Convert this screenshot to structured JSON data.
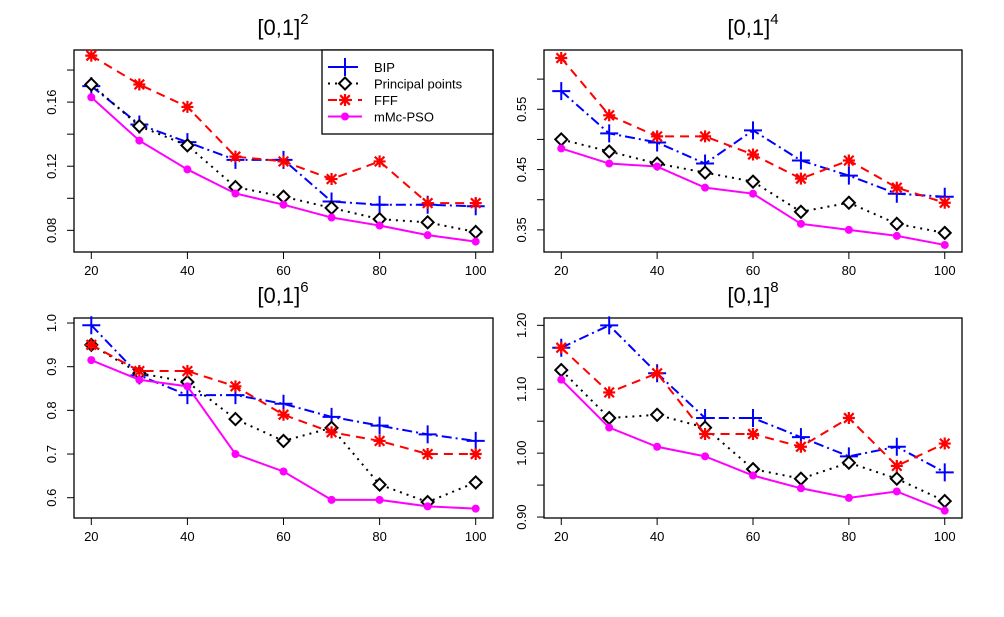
{
  "chart_data": [
    {
      "type": "line",
      "title": "[0,1]",
      "title_exponent": "2",
      "xlabel": "",
      "ylabel": "",
      "x": [
        20,
        30,
        40,
        50,
        60,
        70,
        80,
        90,
        100
      ],
      "xticks": [
        20,
        40,
        60,
        80,
        100
      ],
      "yticks": [
        0.08,
        0.1,
        0.12,
        0.14,
        0.16,
        0.18
      ],
      "ytick_labels": [
        "0.08",
        "",
        "0.12",
        "",
        "0.16",
        ""
      ],
      "ylim": [
        0.0665,
        0.1925
      ],
      "xlim": [
        16.4,
        103.6
      ],
      "legend": "top-right",
      "series": [
        {
          "name": "BIP",
          "color": "#0000ff",
          "marker": "plus",
          "linestyle": "dashdot",
          "values": [
            0.17,
            0.146,
            0.135,
            0.124,
            0.124,
            0.098,
            0.096,
            0.096,
            0.095
          ]
        },
        {
          "name": "Principal points",
          "color": "#000000",
          "marker": "diamond",
          "linestyle": "dotted",
          "values": [
            0.171,
            0.145,
            0.133,
            0.107,
            0.101,
            0.094,
            0.087,
            0.085,
            0.079
          ]
        },
        {
          "name": "FFF",
          "color": "#ff0000",
          "marker": "asterisk",
          "linestyle": "dashed",
          "values": [
            0.189,
            0.171,
            0.157,
            0.126,
            0.123,
            0.112,
            0.123,
            0.097,
            0.097
          ]
        },
        {
          "name": "mMc-PSO",
          "color": "#ff00ff",
          "marker": "dot",
          "linestyle": "solid",
          "values": [
            0.163,
            0.136,
            0.118,
            0.103,
            0.096,
            0.088,
            0.083,
            0.077,
            0.073
          ]
        }
      ]
    },
    {
      "type": "line",
      "title": "[0,1]",
      "title_exponent": "4",
      "xlabel": "",
      "ylabel": "",
      "x": [
        20,
        30,
        40,
        50,
        60,
        70,
        80,
        90,
        100
      ],
      "xticks": [
        20,
        40,
        60,
        80,
        100
      ],
      "yticks": [
        0.35,
        0.4,
        0.45,
        0.5,
        0.55,
        0.6
      ],
      "ytick_labels": [
        "0.35",
        "",
        "0.45",
        "",
        "0.55",
        ""
      ],
      "ylim": [
        0.3133,
        0.6483
      ],
      "xlim": [
        16.4,
        103.6
      ],
      "legend": "none",
      "series": [
        {
          "name": "BIP",
          "color": "#0000ff",
          "marker": "plus",
          "linestyle": "dashdot",
          "values": [
            0.58,
            0.51,
            0.495,
            0.46,
            0.515,
            0.465,
            0.44,
            0.41,
            0.405
          ]
        },
        {
          "name": "Principal points",
          "color": "#000000",
          "marker": "diamond",
          "linestyle": "dotted",
          "values": [
            0.5,
            0.48,
            0.46,
            0.445,
            0.43,
            0.38,
            0.395,
            0.36,
            0.345
          ]
        },
        {
          "name": "FFF",
          "color": "#ff0000",
          "marker": "asterisk",
          "linestyle": "dashed",
          "values": [
            0.635,
            0.54,
            0.505,
            0.505,
            0.475,
            0.435,
            0.465,
            0.42,
            0.395
          ]
        },
        {
          "name": "mMc-PSO",
          "color": "#ff00ff",
          "marker": "dot",
          "linestyle": "solid",
          "values": [
            0.485,
            0.46,
            0.455,
            0.42,
            0.41,
            0.36,
            0.35,
            0.34,
            0.325
          ]
        }
      ]
    },
    {
      "type": "line",
      "title": "[0,1]",
      "title_exponent": "6",
      "xlabel": "",
      "ylabel": "",
      "x": [
        20,
        30,
        40,
        50,
        60,
        70,
        80,
        90,
        100
      ],
      "xticks": [
        20,
        40,
        60,
        80,
        100
      ],
      "yticks": [
        0.6,
        0.7,
        0.8,
        0.9,
        1.0
      ],
      "ytick_labels": [
        "0.6",
        "0.7",
        "0.8",
        "0.9",
        "1.0"
      ],
      "ylim": [
        0.5535,
        1.0115
      ],
      "xlim": [
        16.4,
        103.6
      ],
      "legend": "none",
      "series": [
        {
          "name": "BIP",
          "color": "#0000ff",
          "marker": "plus",
          "linestyle": "dashdot",
          "values": [
            0.995,
            0.88,
            0.835,
            0.835,
            0.815,
            0.785,
            0.765,
            0.745,
            0.73
          ]
        },
        {
          "name": "Principal points",
          "color": "#000000",
          "marker": "diamond",
          "linestyle": "dotted",
          "values": [
            0.95,
            0.885,
            0.865,
            0.78,
            0.73,
            0.76,
            0.63,
            0.59,
            0.635
          ]
        },
        {
          "name": "FFF",
          "color": "#ff0000",
          "marker": "asterisk",
          "linestyle": "dashed",
          "values": [
            0.95,
            0.89,
            0.89,
            0.855,
            0.79,
            0.75,
            0.73,
            0.7,
            0.7
          ]
        },
        {
          "name": "mMc-PSO",
          "color": "#ff00ff",
          "marker": "dot",
          "linestyle": "solid",
          "values": [
            0.915,
            0.87,
            0.855,
            0.7,
            0.66,
            0.595,
            0.595,
            0.58,
            0.575
          ]
        }
      ]
    },
    {
      "type": "line",
      "title": "[0,1]",
      "title_exponent": "8",
      "xlabel": "",
      "ylabel": "",
      "x": [
        20,
        30,
        40,
        50,
        60,
        70,
        80,
        90,
        100
      ],
      "xticks": [
        20,
        40,
        60,
        80,
        100
      ],
      "yticks": [
        0.9,
        0.95,
        1.0,
        1.05,
        1.1,
        1.15,
        1.2
      ],
      "ytick_labels": [
        "0.90",
        "",
        "1.00",
        "",
        "1.10",
        "",
        "1.20"
      ],
      "ylim": [
        0.8985,
        1.2115
      ],
      "xlim": [
        16.4,
        103.6
      ],
      "legend": "none",
      "series": [
        {
          "name": "BIP",
          "color": "#0000ff",
          "marker": "plus",
          "linestyle": "dashdot",
          "values": [
            1.165,
            1.2,
            1.125,
            1.055,
            1.055,
            1.025,
            0.995,
            1.01,
            0.97
          ]
        },
        {
          "name": "Principal points",
          "color": "#000000",
          "marker": "diamond",
          "linestyle": "dotted",
          "values": [
            1.13,
            1.055,
            1.06,
            1.04,
            0.975,
            0.96,
            0.985,
            0.96,
            0.925
          ]
        },
        {
          "name": "FFF",
          "color": "#ff0000",
          "marker": "asterisk",
          "linestyle": "dashed",
          "values": [
            1.165,
            1.095,
            1.125,
            1.03,
            1.03,
            1.01,
            1.055,
            0.98,
            1.015
          ]
        },
        {
          "name": "mMc-PSO",
          "color": "#ff00ff",
          "marker": "dot",
          "linestyle": "solid",
          "values": [
            1.115,
            1.04,
            1.01,
            0.995,
            0.965,
            0.945,
            0.93,
            0.94,
            0.91
          ]
        }
      ]
    }
  ]
}
